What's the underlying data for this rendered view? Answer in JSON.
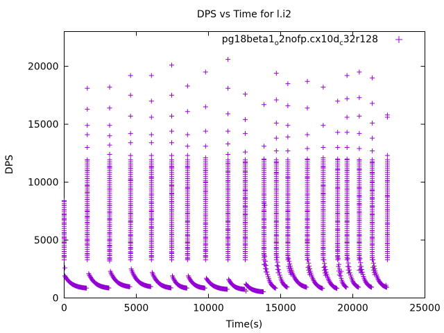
{
  "chart_data": {
    "type": "scatter",
    "title": "DPS vs Time for l.i2",
    "xlabel": "Time(s)",
    "ylabel": "DPS",
    "xlim": [
      0,
      25000
    ],
    "ylim": [
      0,
      23000
    ],
    "xticks": [
      0,
      5000,
      10000,
      15000,
      20000,
      25000
    ],
    "yticks": [
      0,
      5000,
      10000,
      15000,
      20000
    ],
    "grid": false,
    "legend_position": "top-right",
    "marker": "+",
    "series": [
      {
        "name_parts": [
          "pg18beta1",
          "o",
          "2nofp.cx10d",
          "c",
          "32r128"
        ],
        "color": "#9400d3",
        "bursts": [
          {
            "x": 0,
            "y_values": [
              8400,
              8000,
              7600,
              7200,
              6800,
              6400,
              6000,
              5600,
              5200,
              4800,
              4400,
              4000,
              3600,
              3300
            ]
          },
          {
            "x": 1600,
            "y_values": [
              18100,
              16300,
              14900,
              14100,
              13000,
              11900,
              11000,
              10300,
              9700,
              9100,
              8500,
              8000,
              7500,
              7000,
              6500,
              6000,
              5500,
              5000,
              4600,
              4200,
              3800,
              3500
            ]
          },
          {
            "x": 3150,
            "y_values": [
              18200,
              16400,
              14900,
              14000,
              13200,
              12400,
              11300,
              10300,
              9400,
              8700,
              8000,
              7400,
              6800,
              6200,
              5600,
              5000,
              4500,
              4100,
              3700,
              3400
            ]
          },
          {
            "x": 4600,
            "y_values": [
              19200,
              17500,
              15700,
              14200,
              13400,
              12300,
              11200,
              10200,
              9400,
              8700,
              8000,
              7300,
              6600,
              6000,
              5400,
              4800,
              4300,
              3900,
              3500
            ]
          },
          {
            "x": 6050,
            "y_values": [
              19200,
              17000,
              15600,
              14100,
              13400,
              12300,
              11300,
              10400,
              9600,
              8900,
              8200,
              7500,
              6800,
              6100,
              5500,
              4900,
              4400,
              4000,
              3600
            ]
          },
          {
            "x": 7450,
            "y_values": [
              20100,
              17500,
              15700,
              14400,
              13400,
              12300,
              11300,
              10500,
              9700,
              9000,
              8300,
              7600,
              6900,
              6200,
              5500,
              4900,
              4400,
              3900,
              3500
            ]
          },
          {
            "x": 8550,
            "y_values": [
              18300,
              16100,
              14100,
              13100,
              12300,
              11300,
              10300,
              9500,
              8700,
              8000,
              7300,
              6600,
              6000,
              5400,
              4800,
              4300,
              3800,
              3400
            ]
          },
          {
            "x": 9800,
            "y_values": [
              19500,
              16500,
              14400,
              13100,
              12100,
              11000,
              10000,
              9200,
              8500,
              7800,
              7100,
              6400,
              5800,
              5200,
              4600,
              4100,
              3600
            ]
          },
          {
            "x": 11350,
            "y_values": [
              20600,
              18100,
              15900,
              14400,
              13300,
              12400,
              11600,
              10900,
              10100,
              9400,
              8700,
              8000,
              7300,
              6600,
              5900,
              5200,
              4600,
              4000,
              3500
            ]
          },
          {
            "x": 12550,
            "y_values": [
              17600,
              15400,
              14200,
              12600,
              11700,
              10900,
              10100,
              9300,
              8600,
              7900,
              7200,
              6500,
              5800,
              5200,
              4600,
              4000,
              3500
            ]
          },
          {
            "x": 13850,
            "y_values": [
              16700,
              13100,
              12000,
              11200,
              10300,
              9600,
              8900,
              8200,
              7500,
              6800,
              6100,
              5500,
              4900,
              4300,
              3800,
              3300,
              2900
            ]
          },
          {
            "x": 14700,
            "y_values": [
              19400,
              17100,
              15100,
              13800,
              12700,
              11700,
              10800,
              10100,
              9400,
              8700,
              8000,
              7300,
              6600,
              6000,
              5400,
              4800,
              4300,
              3800
            ]
          },
          {
            "x": 15500,
            "y_values": [
              18500,
              16600,
              14900,
              13900,
              12700,
              11400,
              10400,
              9600,
              8900,
              8200,
              7500,
              6800,
              6100,
              5400,
              4800,
              4200,
              3700
            ]
          },
          {
            "x": 16850,
            "y_values": [
              18700,
              16400,
              14100,
              12900,
              12000,
              11200,
              10400,
              9600,
              8900,
              8200,
              7500,
              6800,
              6100,
              5400,
              4800,
              4200,
              3700
            ]
          },
          {
            "x": 17950,
            "y_values": [
              18200,
              14900,
              13000,
              12100,
              11300,
              10500,
              9700,
              9000,
              8300,
              7600,
              6900,
              6200,
              5500,
              4900,
              4300,
              3800,
              3300
            ]
          },
          {
            "x": 18950,
            "y_values": [
              17000,
              14300,
              13000,
              12000,
              11100,
              10300,
              9500,
              8700,
              8000,
              7300,
              6600,
              5900,
              5300,
              4700,
              4100,
              3600
            ]
          },
          {
            "x": 19600,
            "y_values": [
              19200,
              17200,
              15600,
              14300,
              13000,
              12000,
              11000,
              10100,
              9400,
              8700,
              8000,
              7300,
              6600,
              6000,
              5400,
              4800,
              4200,
              3700
            ]
          },
          {
            "x": 20450,
            "y_values": [
              19500,
              17300,
              15700,
              14200,
              12900,
              11900,
              11100,
              10300,
              9500,
              8800,
              8100,
              7400,
              6700,
              6000,
              5400,
              4800,
              4200,
              3700
            ]
          },
          {
            "x": 21350,
            "y_values": [
              19000,
              16800,
              15100,
              13800,
              12700,
              11700,
              10800,
              10000,
              9300,
              8600,
              7900,
              7200,
              6500,
              5800,
              5200,
              4600,
              4000,
              3500
            ]
          },
          {
            "x": 22400,
            "y_values": [
              15800,
              15600,
              12300,
              10100,
              8800,
              7600,
              6400,
              5500,
              4700,
              4000,
              3500
            ]
          }
        ],
        "decay_segments": [
          {
            "x0": 50,
            "x1": 1550,
            "y0": 1900,
            "y1": 800
          },
          {
            "x0": 1700,
            "x1": 3100,
            "y0": 2100,
            "y1": 800
          },
          {
            "x0": 3200,
            "x1": 4550,
            "y0": 2300,
            "y1": 900
          },
          {
            "x0": 4650,
            "x1": 6000,
            "y0": 2500,
            "y1": 900
          },
          {
            "x0": 6100,
            "x1": 7400,
            "y0": 2200,
            "y1": 800
          },
          {
            "x0": 7500,
            "x1": 8500,
            "y0": 1900,
            "y1": 800
          },
          {
            "x0": 8600,
            "x1": 9750,
            "y0": 1900,
            "y1": 800
          },
          {
            "x0": 9850,
            "x1": 11300,
            "y0": 1700,
            "y1": 700
          },
          {
            "x0": 11400,
            "x1": 12500,
            "y0": 1600,
            "y1": 700
          },
          {
            "x0": 12600,
            "x1": 13800,
            "y0": 1200,
            "y1": 500
          },
          {
            "x0": 13900,
            "x1": 14650,
            "y0": 3600,
            "y1": 700
          },
          {
            "x0": 14750,
            "x1": 15450,
            "y0": 3500,
            "y1": 800
          },
          {
            "x0": 15550,
            "x1": 16800,
            "y0": 3400,
            "y1": 800
          },
          {
            "x0": 16900,
            "x1": 17900,
            "y0": 3300,
            "y1": 700
          },
          {
            "x0": 18000,
            "x1": 18900,
            "y0": 3300,
            "y1": 700
          },
          {
            "x0": 19000,
            "x1": 19550,
            "y0": 3400,
            "y1": 800
          },
          {
            "x0": 19650,
            "x1": 20400,
            "y0": 3400,
            "y1": 800
          },
          {
            "x0": 20500,
            "x1": 21300,
            "y0": 3400,
            "y1": 800
          },
          {
            "x0": 21400,
            "x1": 22350,
            "y0": 3300,
            "y1": 800
          }
        ],
        "isolated_points": [
          {
            "x": 50,
            "y": 2600
          },
          {
            "x": 3150,
            "y": 3200
          },
          {
            "x": 13900,
            "y": 8000
          },
          {
            "x": 14700,
            "y": 6200
          },
          {
            "x": 16850,
            "y": 5000
          },
          {
            "x": 18950,
            "y": 4400
          },
          {
            "x": 20450,
            "y": 2400
          },
          {
            "x": 22300,
            "y": 1100
          },
          {
            "x": 19200,
            "y": 2300
          },
          {
            "x": 12600,
            "y": 600
          }
        ]
      }
    ]
  }
}
